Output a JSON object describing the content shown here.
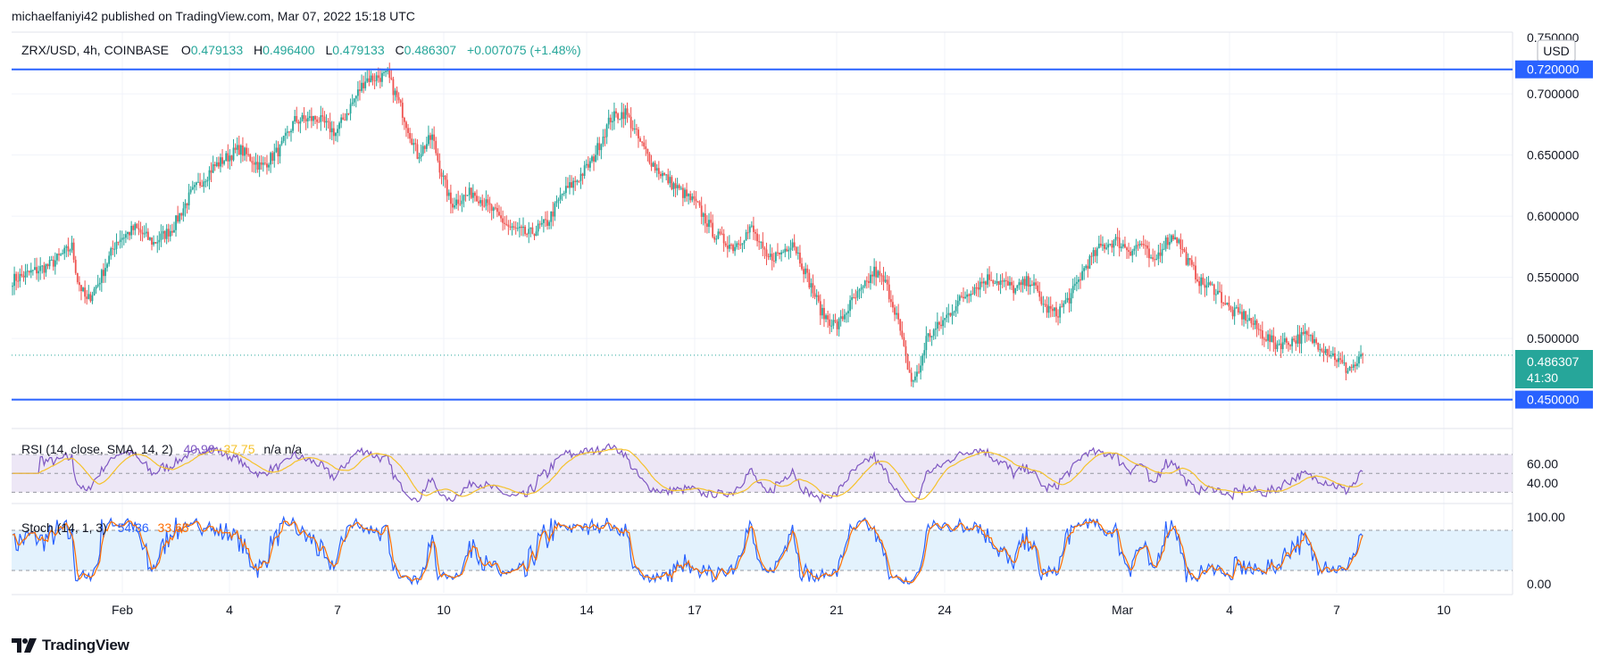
{
  "publisher": "michaelfaniyi42 published on TradingView.com, Mar 07, 2022 15:18 UTC",
  "branding": {
    "logo_text": "TradingView",
    "logo_icon": "tradingview-logo-icon"
  },
  "colors": {
    "up": "#26a69a",
    "down": "#ef5350",
    "level": "#2962ff",
    "rsi": "#7e57c2",
    "rsi_ma": "#f5c22b",
    "stoch_k": "#2962ff",
    "stoch_d": "#ff6d00",
    "rsi_band": "#ede7f6",
    "stoch_band": "#e3f2fd",
    "price_line": "#26a69a"
  },
  "legend": {
    "symbol": "ZRX/USD, 4h, COINBASE",
    "o_label": "O",
    "o_value": "0.479133",
    "h_label": "H",
    "h_value": "0.496400",
    "l_label": "L",
    "l_value": "0.479133",
    "c_label": "C",
    "c_value": "0.486307",
    "change": "+0.007075 (+1.48%)"
  },
  "currency": "USD",
  "price_axis": {
    "top_partial": "0.750000",
    "ticks": [
      "0.700000",
      "0.650000",
      "0.600000",
      "0.550000",
      "0.500000"
    ]
  },
  "levels": [
    {
      "name": "resistance",
      "value": 0.72,
      "label": "0.720000"
    },
    {
      "name": "support",
      "value": 0.45,
      "label": "0.450000"
    }
  ],
  "last_price": {
    "value": 0.486307,
    "label": "0.486307",
    "countdown": "41:30"
  },
  "time_axis": [
    "Feb",
    "4",
    "7",
    "10",
    "14",
    "17",
    "21",
    "24",
    "Mar",
    "4",
    "7",
    "10"
  ],
  "rsi": {
    "label": "RSI (14, close, SMA, 14, 2)",
    "value": "40.96",
    "ma_value": "37.75",
    "extra": "n/a n/a",
    "axis": [
      "60.00",
      "40.00"
    ],
    "upper": 70,
    "lower": 30
  },
  "stoch": {
    "label": "Stoch (14, 1, 3)",
    "k_value": "54.36",
    "d_value": "33.65",
    "axis": [
      "100.00",
      "0.00"
    ],
    "upper": 80,
    "lower": 20
  },
  "chart_data": {
    "type": "candlestick",
    "title": "ZRX/USD, 4h, COINBASE",
    "ylim": [
      0.45,
      0.75
    ],
    "x_range": [
      "Jan 29",
      "Mar 7"
    ],
    "path_anchors": [
      [
        0,
        0.548
      ],
      [
        20,
        0.56
      ],
      [
        32,
        0.575
      ],
      [
        35,
        0.548
      ],
      [
        40,
        0.53
      ],
      [
        46,
        0.545
      ],
      [
        56,
        0.58
      ],
      [
        66,
        0.59
      ],
      [
        76,
        0.578
      ],
      [
        86,
        0.59
      ],
      [
        96,
        0.618
      ],
      [
        108,
        0.64
      ],
      [
        122,
        0.655
      ],
      [
        134,
        0.64
      ],
      [
        144,
        0.655
      ],
      [
        152,
        0.678
      ],
      [
        164,
        0.68
      ],
      [
        174,
        0.668
      ],
      [
        190,
        0.712
      ],
      [
        202,
        0.715
      ],
      [
        210,
        0.685
      ],
      [
        218,
        0.65
      ],
      [
        226,
        0.665
      ],
      [
        230,
        0.64
      ],
      [
        236,
        0.61
      ],
      [
        248,
        0.62
      ],
      [
        258,
        0.605
      ],
      [
        268,
        0.59
      ],
      [
        278,
        0.585
      ],
      [
        288,
        0.595
      ],
      [
        296,
        0.618
      ],
      [
        304,
        0.63
      ],
      [
        312,
        0.645
      ],
      [
        322,
        0.68
      ],
      [
        330,
        0.685
      ],
      [
        338,
        0.66
      ],
      [
        346,
        0.64
      ],
      [
        356,
        0.625
      ],
      [
        368,
        0.61
      ],
      [
        378,
        0.585
      ],
      [
        388,
        0.575
      ],
      [
        398,
        0.59
      ],
      [
        406,
        0.565
      ],
      [
        414,
        0.57
      ],
      [
        420,
        0.58
      ],
      [
        428,
        0.55
      ],
      [
        436,
        0.52
      ],
      [
        444,
        0.51
      ],
      [
        452,
        0.53
      ],
      [
        458,
        0.54
      ],
      [
        464,
        0.555
      ],
      [
        470,
        0.545
      ],
      [
        476,
        0.52
      ],
      [
        480,
        0.49
      ],
      [
        484,
        0.465
      ],
      [
        488,
        0.472
      ],
      [
        492,
        0.5
      ],
      [
        500,
        0.512
      ],
      [
        508,
        0.528
      ],
      [
        516,
        0.54
      ],
      [
        526,
        0.55
      ],
      [
        534,
        0.545
      ],
      [
        540,
        0.54
      ],
      [
        548,
        0.548
      ],
      [
        556,
        0.525
      ],
      [
        562,
        0.52
      ],
      [
        570,
        0.535
      ],
      [
        578,
        0.56
      ],
      [
        586,
        0.575
      ],
      [
        594,
        0.58
      ],
      [
        602,
        0.572
      ],
      [
        608,
        0.578
      ],
      [
        614,
        0.56
      ],
      [
        620,
        0.578
      ],
      [
        626,
        0.585
      ],
      [
        632,
        0.565
      ],
      [
        640,
        0.545
      ],
      [
        648,
        0.54
      ],
      [
        656,
        0.522
      ],
      [
        664,
        0.518
      ],
      [
        672,
        0.505
      ],
      [
        680,
        0.495
      ],
      [
        688,
        0.498
      ],
      [
        696,
        0.502
      ],
      [
        704,
        0.495
      ],
      [
        712,
        0.485
      ],
      [
        718,
        0.475
      ],
      [
        724,
        0.479
      ],
      [
        727,
        0.486
      ]
    ]
  }
}
